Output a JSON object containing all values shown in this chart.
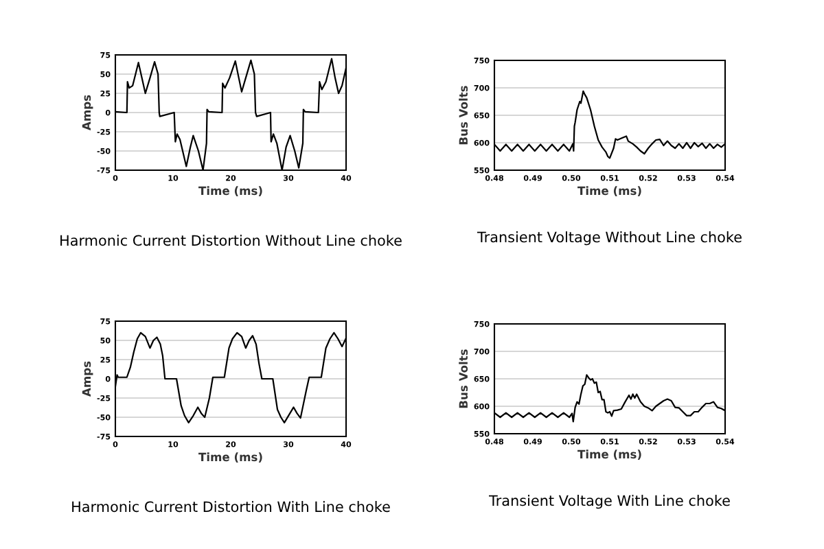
{
  "chart_data": [
    {
      "type": "line",
      "title": "Harmonic Current Distortion Without Line choke",
      "xlabel": "Time (ms)",
      "ylabel": "Amps",
      "xlim": [
        0,
        40
      ],
      "xticks": [
        0,
        10,
        20,
        30,
        40
      ],
      "ylim": [
        -75,
        75
      ],
      "yticks": [
        -75,
        -50,
        -25,
        0,
        25,
        50,
        75
      ],
      "grid": "y",
      "legend": false,
      "series": [
        {
          "color": "#000000",
          "x": [
            0,
            2.0,
            2.1,
            2.4,
            3.0,
            4.0,
            4.6,
            5.2,
            6.0,
            6.8,
            7.4,
            7.6,
            7.7,
            10.2,
            10.4,
            10.7,
            11.2,
            12.3,
            13.0,
            13.5,
            14.4,
            15.2,
            15.8,
            15.9,
            16.2,
            18.5,
            18.6,
            19.0,
            19.8,
            20.8,
            21.4,
            21.9,
            22.6,
            23.5,
            24.1,
            24.3,
            24.5,
            26.9,
            27.0,
            27.4,
            28.0,
            28.9,
            29.6,
            30.3,
            31.1,
            31.8,
            32.5,
            32.6,
            32.9,
            35.2,
            35.4,
            35.8,
            36.5,
            37.5,
            38.1,
            38.7,
            39.3,
            40
          ],
          "values": [
            1,
            0,
            40,
            32,
            35,
            65,
            45,
            25,
            45,
            66,
            50,
            0,
            -5,
            0,
            -38,
            -28,
            -35,
            -70,
            -45,
            -30,
            -50,
            -75,
            -40,
            4,
            1,
            0,
            38,
            32,
            45,
            67,
            45,
            27,
            45,
            68,
            50,
            0,
            -5,
            0,
            -38,
            -28,
            -40,
            -75,
            -45,
            -30,
            -50,
            -72,
            -40,
            4,
            1,
            0,
            40,
            30,
            40,
            70,
            45,
            25,
            35,
            58
          ]
        }
      ]
    },
    {
      "type": "line",
      "title": "Transient Voltage Without Line choke",
      "xlabel": "Time (ms)",
      "ylabel": "Bus Volts",
      "xlim": [
        0.48,
        0.54
      ],
      "xticks": [
        {
          "value": 0.48,
          "label": "0.48"
        },
        {
          "value": 0.49,
          "label": "0.49"
        },
        {
          "value": 0.5,
          "label": "0.50"
        },
        {
          "value": 0.51,
          "label": "0.51"
        },
        {
          "value": 0.52,
          "label": "0.52"
        },
        {
          "value": 0.53,
          "label": "0.53"
        },
        {
          "value": 0.54,
          "label": "0.54"
        }
      ],
      "ylim": [
        550,
        750
      ],
      "yticks": [
        550,
        600,
        650,
        700,
        750
      ],
      "grid": "y",
      "legend": false,
      "series": [
        {
          "color": "#000000",
          "x": [
            0.48,
            0.4815,
            0.483,
            0.4845,
            0.486,
            0.4875,
            0.489,
            0.4905,
            0.492,
            0.4935,
            0.495,
            0.4965,
            0.498,
            0.4995,
            0.5004,
            0.5006,
            0.5008,
            0.501,
            0.5015,
            0.5022,
            0.5025,
            0.5031,
            0.5035,
            0.504,
            0.505,
            0.506,
            0.507,
            0.508,
            0.509,
            0.5095,
            0.51,
            0.511,
            0.5115,
            0.512,
            0.513,
            0.5143,
            0.5148,
            0.516,
            0.517,
            0.518,
            0.519,
            0.52,
            0.521,
            0.522,
            0.523,
            0.524,
            0.525,
            0.526,
            0.527,
            0.528,
            0.529,
            0.53,
            0.531,
            0.532,
            0.533,
            0.534,
            0.535,
            0.536,
            0.537,
            0.538,
            0.539,
            0.54
          ],
          "values": [
            597,
            585,
            597,
            585,
            597,
            585,
            597,
            585,
            597,
            585,
            597,
            585,
            597,
            585,
            598,
            585,
            630,
            637,
            660,
            675,
            672,
            694,
            688,
            682,
            660,
            630,
            605,
            592,
            583,
            575,
            572,
            590,
            607,
            605,
            608,
            612,
            603,
            598,
            592,
            585,
            580,
            590,
            598,
            605,
            606,
            595,
            603,
            595,
            590,
            598,
            590,
            600,
            590,
            600,
            593,
            599,
            590,
            598,
            590,
            597,
            592,
            598
          ]
        }
      ]
    },
    {
      "type": "line",
      "title": "Harmonic Current Distortion With Line choke",
      "xlabel": "Time (ms)",
      "ylabel": "Amps",
      "xlim": [
        0,
        40
      ],
      "xticks": [
        0,
        10,
        20,
        30,
        40
      ],
      "ylim": [
        -75,
        75
      ],
      "yticks": [
        -75,
        -50,
        -25,
        0,
        25,
        50,
        75
      ],
      "grid": "y",
      "legend": false,
      "series": [
        {
          "color": "#000000",
          "x": [
            0,
            0.3,
            0.5,
            2.0,
            2.6,
            3.2,
            3.8,
            4.4,
            5.2,
            6.0,
            6.6,
            7.2,
            7.8,
            8.2,
            8.6,
            10.6,
            11.4,
            12.0,
            12.7,
            13.5,
            14.3,
            14.9,
            15.5,
            16.3,
            16.9,
            18.9,
            19.7,
            20.3,
            21.1,
            21.9,
            22.6,
            23.2,
            23.8,
            24.4,
            24.9,
            25.4,
            27.3,
            28.1,
            28.7,
            29.3,
            30.1,
            30.9,
            31.5,
            32.1,
            33.1,
            33.6,
            35.7,
            36.5,
            37.2,
            37.9,
            38.6,
            39.3,
            40
          ],
          "values": [
            -10,
            5,
            2,
            2,
            15,
            35,
            52,
            60,
            55,
            40,
            50,
            54,
            45,
            30,
            0,
            0,
            -35,
            -48,
            -57,
            -48,
            -37,
            -45,
            -50,
            -25,
            2,
            2,
            40,
            52,
            60,
            55,
            40,
            50,
            56,
            45,
            20,
            0,
            0,
            -40,
            -50,
            -57,
            -47,
            -37,
            -45,
            -51,
            -15,
            2,
            2,
            40,
            52,
            60,
            52,
            42,
            53
          ]
        }
      ]
    },
    {
      "type": "line",
      "title": "Transient Voltage With Line choke",
      "xlabel": "Time (ms)",
      "ylabel": "Bus Volts",
      "xlim": [
        0.48,
        0.54
      ],
      "xticks": [
        {
          "value": 0.48,
          "label": "0.48"
        },
        {
          "value": 0.49,
          "label": "0.49"
        },
        {
          "value": 0.5,
          "label": "0.50"
        },
        {
          "value": 0.51,
          "label": "0.51"
        },
        {
          "value": 0.52,
          "label": "0.52"
        },
        {
          "value": 0.53,
          "label": "0.53"
        },
        {
          "value": 0.54,
          "label": "0.54"
        }
      ],
      "ylim": [
        550,
        750
      ],
      "yticks": [
        550,
        600,
        650,
        700,
        750
      ],
      "grid": "y",
      "legend": false,
      "series": [
        {
          "color": "#000000",
          "x": [
            0.48,
            0.4815,
            0.483,
            0.4845,
            0.486,
            0.4875,
            0.489,
            0.4905,
            0.492,
            0.4935,
            0.495,
            0.4965,
            0.498,
            0.4995,
            0.5002,
            0.5005,
            0.501,
            0.5015,
            0.502,
            0.5025,
            0.503,
            0.5035,
            0.504,
            0.5045,
            0.505,
            0.5055,
            0.506,
            0.5065,
            0.507,
            0.5075,
            0.508,
            0.5085,
            0.509,
            0.5095,
            0.51,
            0.5105,
            0.511,
            0.512,
            0.513,
            0.514,
            0.515,
            0.5155,
            0.516,
            0.5165,
            0.517,
            0.518,
            0.519,
            0.52,
            0.521,
            0.522,
            0.523,
            0.524,
            0.525,
            0.526,
            0.527,
            0.528,
            0.529,
            0.53,
            0.531,
            0.532,
            0.533,
            0.534,
            0.535,
            0.536,
            0.537,
            0.538,
            0.539,
            0.54
          ],
          "values": [
            588,
            580,
            588,
            580,
            588,
            580,
            588,
            580,
            588,
            580,
            588,
            580,
            588,
            580,
            587,
            572,
            598,
            608,
            604,
            622,
            637,
            640,
            657,
            652,
            648,
            650,
            642,
            644,
            625,
            627,
            612,
            612,
            590,
            588,
            590,
            582,
            592,
            593,
            595,
            608,
            620,
            613,
            622,
            615,
            622,
            608,
            600,
            597,
            592,
            600,
            605,
            610,
            613,
            610,
            598,
            597,
            590,
            583,
            583,
            590,
            590,
            598,
            605,
            605,
            608,
            598,
            596,
            592
          ]
        }
      ]
    }
  ]
}
